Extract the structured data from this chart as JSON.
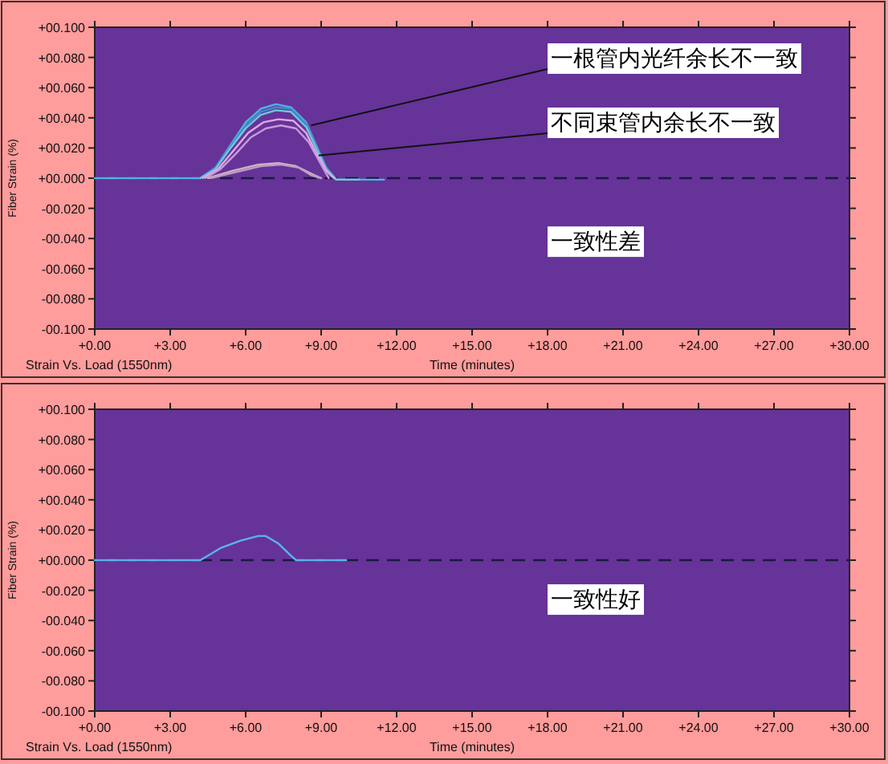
{
  "chart_data": [
    {
      "type": "line",
      "title": "Strain Vs. Load (1550nm)",
      "xlabel": "Time (minutes)",
      "ylabel": "Fiber Strain (%)",
      "xlim": [
        0,
        30
      ],
      "xticks": [
        {
          "value": 0,
          "label": "+0.00"
        },
        {
          "value": 3,
          "label": "+3.00"
        },
        {
          "value": 6,
          "label": "+6.00"
        },
        {
          "value": 9,
          "label": "+9.00"
        },
        {
          "value": 12,
          "label": "+12.00"
        },
        {
          "value": 15,
          "label": "+15.00"
        },
        {
          "value": 18,
          "label": "+18.00"
        },
        {
          "value": 21,
          "label": "+21.00"
        },
        {
          "value": 24,
          "label": "+24.00"
        },
        {
          "value": 27,
          "label": "+27.00"
        },
        {
          "value": 30,
          "label": "+30.00"
        }
      ],
      "ylim": [
        -0.1,
        0.1
      ],
      "yticks": [
        {
          "value": 0.1,
          "label": "+00.100"
        },
        {
          "value": 0.08,
          "label": "+00.080"
        },
        {
          "value": 0.06,
          "label": "+00.060"
        },
        {
          "value": 0.04,
          "label": "+00.040"
        },
        {
          "value": 0.02,
          "label": "+00.020"
        },
        {
          "value": 0,
          "label": "+00.000"
        },
        {
          "value": -0.02,
          "label": "-00.020"
        },
        {
          "value": -0.04,
          "label": "-00.040"
        },
        {
          "value": -0.06,
          "label": "-00.060"
        },
        {
          "value": -0.08,
          "label": "-00.080"
        },
        {
          "value": -0.1,
          "label": "-00.100"
        }
      ],
      "grid": false,
      "marker": "none",
      "line_style": "solid",
      "ref_lines": [
        {
          "axis": "y",
          "value": 0,
          "label": null,
          "color": "#1a1a40",
          "line_style": "dashed"
        }
      ],
      "series": [
        {
          "color": "#4fb3e0",
          "x": [
            0,
            4.2,
            4.8,
            5.4,
            6.0,
            6.6,
            7.2,
            7.8,
            8.4,
            8.8,
            9.2,
            9.6,
            10.5,
            11.5
          ],
          "values": [
            0,
            0,
            0.007,
            0.022,
            0.037,
            0.046,
            0.049,
            0.047,
            0.037,
            0.022,
            0.007,
            -0.001,
            -0.001,
            -0.001
          ]
        },
        {
          "color": "#3f8fd0",
          "x": [
            4.2,
            4.8,
            5.4,
            6.0,
            6.6,
            7.2,
            7.8,
            8.4,
            8.8,
            9.2,
            9.6,
            10.5
          ],
          "values": [
            0,
            0.007,
            0.021,
            0.035,
            0.044,
            0.047,
            0.046,
            0.036,
            0.021,
            0.007,
            -0.001,
            -0.001
          ]
        },
        {
          "color": "#6ec8d8",
          "x": [
            4.2,
            4.8,
            5.4,
            6.0,
            6.6,
            7.2,
            7.8,
            8.4,
            8.8,
            9.2,
            9.6,
            10.5
          ],
          "values": [
            0,
            0.006,
            0.02,
            0.033,
            0.042,
            0.045,
            0.044,
            0.034,
            0.02,
            0.006,
            -0.001,
            -0.001
          ]
        },
        {
          "color": "#e0a8e8",
          "x": [
            4.3,
            4.9,
            5.5,
            6.1,
            6.7,
            7.3,
            7.9,
            8.4,
            8.8,
            9.2,
            9.5
          ],
          "values": [
            0,
            0.006,
            0.018,
            0.03,
            0.037,
            0.039,
            0.038,
            0.03,
            0.017,
            0.005,
            0
          ]
        },
        {
          "color": "#c99ad8",
          "x": [
            4.4,
            5.0,
            5.6,
            6.2,
            6.8,
            7.4,
            8.0,
            8.5,
            8.9,
            9.3
          ],
          "values": [
            0,
            0.006,
            0.016,
            0.027,
            0.033,
            0.035,
            0.033,
            0.024,
            0.012,
            0
          ]
        },
        {
          "color": "#d8b0c8",
          "x": [
            4.5,
            5.5,
            6.5,
            7.3,
            8.0,
            8.6,
            9.0
          ],
          "values": [
            0,
            0.005,
            0.009,
            0.01,
            0.008,
            0.003,
            0
          ]
        },
        {
          "color": "#b8a0c0",
          "x": [
            4.6,
            5.6,
            6.6,
            7.4,
            8.1,
            8.6,
            9.0
          ],
          "values": [
            0,
            0.004,
            0.008,
            0.009,
            0.007,
            0.002,
            0
          ]
        }
      ],
      "annotations": [
        {
          "text": "一根管内光纤余长不一致",
          "x": 8.6,
          "y": 0.035
        },
        {
          "text": "不同束管内余长不一致",
          "x": 8.9,
          "y": 0.015
        },
        "一致性差"
      ]
    },
    {
      "type": "line",
      "title": "Strain Vs. Load (1550nm)",
      "xlabel": "Time (minutes)",
      "ylabel": "Fiber Strain (%)",
      "xlim": [
        0,
        30
      ],
      "xticks": [
        {
          "value": 0,
          "label": "+0.00"
        },
        {
          "value": 3,
          "label": "+3.00"
        },
        {
          "value": 6,
          "label": "+6.00"
        },
        {
          "value": 9,
          "label": "+9.00"
        },
        {
          "value": 12,
          "label": "+12.00"
        },
        {
          "value": 15,
          "label": "+15.00"
        },
        {
          "value": 18,
          "label": "+18.00"
        },
        {
          "value": 21,
          "label": "+21.00"
        },
        {
          "value": 24,
          "label": "+24.00"
        },
        {
          "value": 27,
          "label": "+27.00"
        },
        {
          "value": 30,
          "label": "+30.00"
        }
      ],
      "ylim": [
        -0.1,
        0.1
      ],
      "yticks": [
        {
          "value": 0.1,
          "label": "+00.100"
        },
        {
          "value": 0.08,
          "label": "+00.080"
        },
        {
          "value": 0.06,
          "label": "+00.060"
        },
        {
          "value": 0.04,
          "label": "+00.040"
        },
        {
          "value": 0.02,
          "label": "+00.020"
        },
        {
          "value": 0,
          "label": "+00.000"
        },
        {
          "value": -0.02,
          "label": "-00.020"
        },
        {
          "value": -0.04,
          "label": "-00.040"
        },
        {
          "value": -0.06,
          "label": "-00.060"
        },
        {
          "value": -0.08,
          "label": "-00.080"
        },
        {
          "value": -0.1,
          "label": "-00.100"
        }
      ],
      "grid": false,
      "marker": "none",
      "line_style": "solid",
      "ref_lines": [
        {
          "axis": "y",
          "value": 0,
          "label": null,
          "color": "#1a1a40",
          "line_style": "dashed"
        }
      ],
      "series": [
        {
          "color": "#5ab4e8",
          "x": [
            0,
            0.5,
            4.2,
            5.0,
            5.8,
            6.5,
            6.8,
            7.3,
            7.8,
            8.0,
            9.0,
            10.0
          ],
          "values": [
            0,
            0,
            0,
            0.008,
            0.013,
            0.016,
            0.016,
            0.011,
            0.003,
            0,
            0,
            0
          ]
        }
      ],
      "annotations": [
        "一致性好"
      ]
    }
  ]
}
